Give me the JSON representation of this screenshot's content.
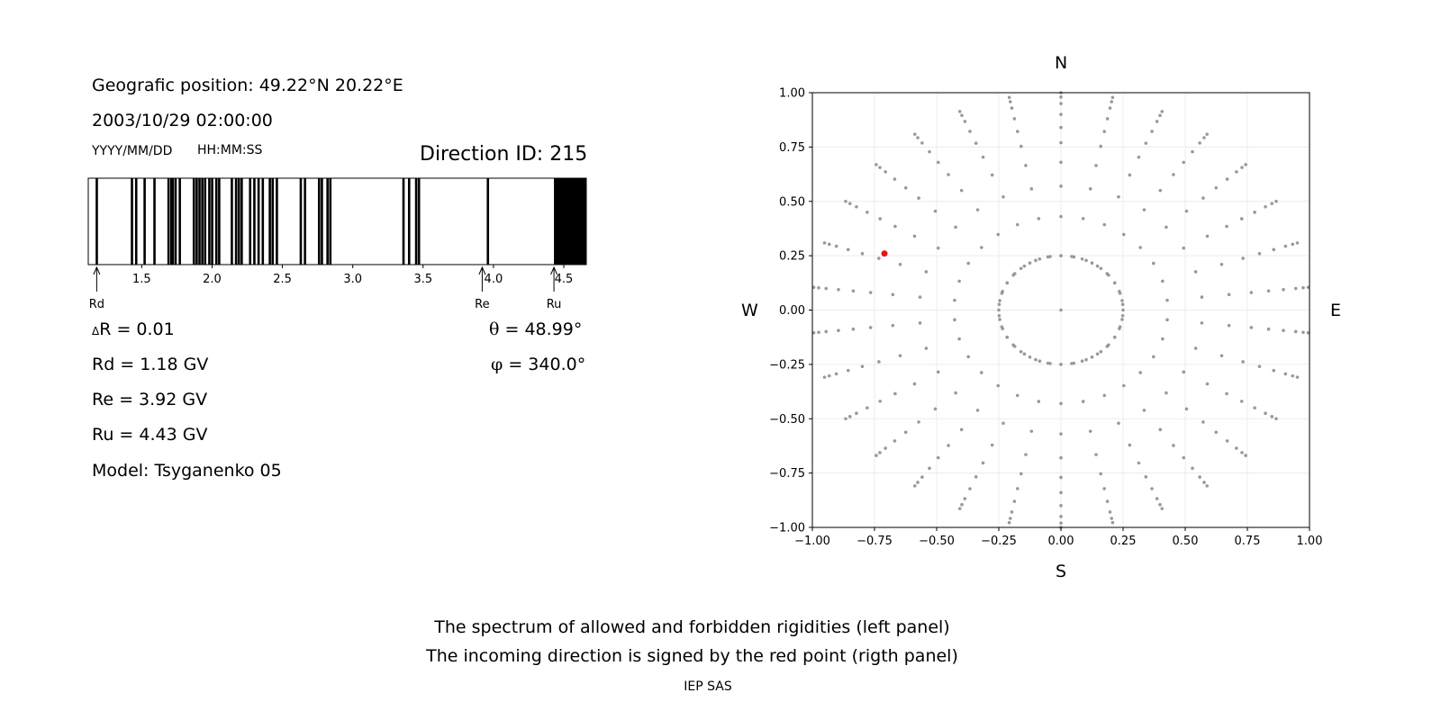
{
  "left_panel": {
    "geo_position": "Geografic position: 49.22°N 20.22°E",
    "datetime": "2003/10/29 02:00:00",
    "date_format_label": "YYYY/MM/DD",
    "time_format_label": "HH:MM:SS",
    "direction_id": "Direction ID: 215",
    "delta_r_symbol": "Δ",
    "delta_r": "R = 0.01",
    "rd": "Rd = 1.18 GV",
    "re": "Re = 3.92 GV",
    "ru": "Ru = 4.43 GV",
    "model": "Model: Tsyganenko 05",
    "theta_symbol": "θ",
    "theta": " = 48.99°",
    "phi_symbol": "φ",
    "phi": " = 340.0°"
  },
  "compass": {
    "north": "N",
    "south": "S",
    "west": "W",
    "east": "E"
  },
  "caption": {
    "line1": "The spectrum of allowed and forbidden rigidities (left panel)",
    "line2": "The incoming direction is signed by the red point (rigth panel)",
    "footer": "IEP SAS"
  },
  "chart_data": [
    {
      "type": "bar",
      "name": "rigidity-spectrum",
      "xlim": [
        1.12,
        4.66
      ],
      "ticks": [
        1.5,
        2.0,
        2.5,
        3.0,
        3.5,
        4.0,
        4.5
      ],
      "tick_labels": [
        "1.5",
        "2.0",
        "2.5",
        "3.0",
        "3.5",
        "4.0",
        "4.5"
      ],
      "forbidden_lines": [
        1.18,
        1.43,
        1.46,
        1.52,
        1.59,
        1.69,
        1.71,
        1.72,
        1.74,
        1.77,
        1.87,
        1.89,
        1.91,
        1.93,
        1.95,
        1.98,
        2.0,
        2.03,
        2.05,
        2.14,
        2.17,
        2.19,
        2.21,
        2.27,
        2.3,
        2.33,
        2.36,
        2.41,
        2.43,
        2.46,
        2.63,
        2.66,
        2.76,
        2.78,
        2.82,
        2.84,
        3.36,
        3.4,
        3.45,
        3.47,
        3.96
      ],
      "forbidden_band": [
        4.43,
        4.66
      ],
      "markers": [
        {
          "label": "Rd",
          "value": 1.18
        },
        {
          "label": "Re",
          "value": 3.92
        },
        {
          "label": "Ru",
          "value": 4.43
        }
      ],
      "colors": {
        "forbidden": "#000000",
        "allowed": "#ffffff"
      }
    },
    {
      "type": "scatter",
      "name": "direction-grid",
      "xlim": [
        -1.0,
        1.0
      ],
      "ylim": [
        -1.0,
        1.0
      ],
      "ticks": [
        -1.0,
        -0.75,
        -0.5,
        -0.25,
        0.0,
        0.25,
        0.5,
        0.75,
        1.0
      ],
      "tick_labels": [
        "−1.00",
        "−0.75",
        "−0.50",
        "−0.25",
        "0.00",
        "0.25",
        "0.50",
        "0.75",
        "1.00"
      ],
      "grid": true,
      "radial_rays": 30,
      "ring_radii": [
        0.25,
        0.43,
        0.57,
        0.68,
        0.77,
        0.84,
        0.9,
        0.95,
        0.98,
        1.0
      ],
      "highlight_point": {
        "x": -0.71,
        "y": 0.26
      },
      "colors": {
        "grid_points": "#999999",
        "highlight": "#ee1111"
      }
    }
  ]
}
